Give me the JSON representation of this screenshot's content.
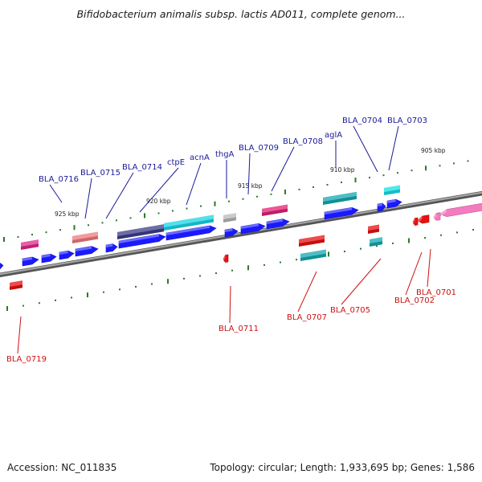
{
  "title": "Bifidobacterium animalis subsp. lactis AD011, complete genom...",
  "footer": {
    "accession": "Accession: NC_011835",
    "summary": "Topology: circular; Length: 1,933,695 bp; Genes: 1,586"
  },
  "colors": {
    "forward_gene": "#1a1aff",
    "reverse_gene": "#ee1111",
    "forward_label": "#1a1a99",
    "reverse_label": "#cc1111",
    "backbone": "#777777",
    "tick": "#2a7a2a"
  },
  "kbp_marks": [
    {
      "label": "905 kbp",
      "pos": 905
    },
    {
      "label": "910 kbp",
      "pos": 910
    },
    {
      "label": "915 kbp",
      "pos": 915
    },
    {
      "label": "920 kbp",
      "pos": 920
    },
    {
      "label": "925 kbp",
      "pos": 925
    }
  ],
  "forward_labels": [
    "BLA_0716",
    "BLA_0715",
    "BLA_0714",
    "ctpE",
    "acnA",
    "thgA",
    "BLA_0709",
    "BLA_0708",
    "aglA",
    "BLA_0704",
    "BLA_0703"
  ],
  "reverse_labels": [
    "BLA_0719",
    "BLA_0711",
    "BLA_0707",
    "BLA_0705",
    "BLA_0702",
    "BLA_0701"
  ]
}
